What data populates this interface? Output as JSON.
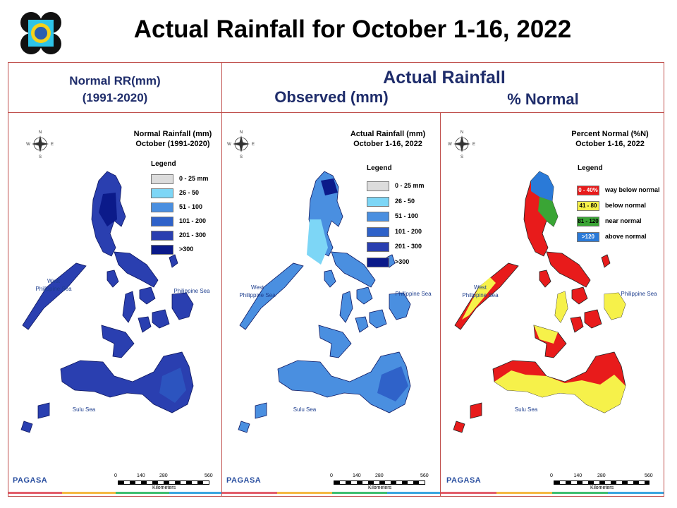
{
  "page_title": "Actual Rainfall for October 1-16, 2022",
  "headers": {
    "normal_line1": "Normal RR(mm)",
    "normal_line2": "(1991-2020)",
    "actual": "Actual Rainfall",
    "observed": "Observed (mm)",
    "percent": "% Normal"
  },
  "colors": {
    "border": "#c0504d",
    "header_text": "#1f2d6b"
  },
  "panels": [
    {
      "title_line1": "Normal Rainfall (mm)",
      "title_line2": "October (1991-2020)",
      "legend_title": "Legend",
      "legend": [
        {
          "label": "0 - 25 mm",
          "color": "#dcdcdc"
        },
        {
          "label": "26 - 50",
          "color": "#7dd6f6"
        },
        {
          "label": "51 - 100",
          "color": "#4a8fe0"
        },
        {
          "label": "101 - 200",
          "color": "#2f62c9"
        },
        {
          "label": "201 - 300",
          "color": "#2a3fb0"
        },
        {
          "label": ">300",
          "color": "#0b1a8a"
        }
      ],
      "sea_west": "West\nPhilippine Sea",
      "sea_east": "Philippine Sea",
      "sea_sulu": "Sulu Sea",
      "scale_ticks": [
        "0",
        "140",
        "280",
        "560"
      ],
      "scale_unit": "Kilometers",
      "logo_text": "PAGASA"
    },
    {
      "title_line1": "Actual Rainfall (mm)",
      "title_line2": "October 1-16, 2022",
      "legend_title": "Legend",
      "legend": [
        {
          "label": "0 - 25 mm",
          "color": "#dcdcdc"
        },
        {
          "label": "26 - 50",
          "color": "#7dd6f6"
        },
        {
          "label": "51 - 100",
          "color": "#4a8fe0"
        },
        {
          "label": "101 - 200",
          "color": "#2f62c9"
        },
        {
          "label": "201 - 300",
          "color": "#2a3fb0"
        },
        {
          "label": ">300",
          "color": "#0b1a8a"
        }
      ],
      "sea_west": "West\nPhilippine Sea",
      "sea_east": "Philippine Sea",
      "sea_sulu": "Sulu Sea",
      "scale_ticks": [
        "0",
        "140",
        "280",
        "560"
      ],
      "scale_unit": "Kilometers",
      "logo_text": "PAGASA"
    },
    {
      "title_line1": "Percent Normal (%N)",
      "title_line2": "October 1-16, 2022",
      "legend_title": "Legend",
      "legend": [
        {
          "box": "0 - 40%",
          "label": "way below normal",
          "color": "#e81b1b",
          "box_text_color": "#ffffff"
        },
        {
          "box": "41 - 80",
          "label": "below normal",
          "color": "#f6f14a",
          "box_text_color": "#000000"
        },
        {
          "box": "81 - 120",
          "label": "near normal",
          "color": "#3aa535",
          "box_text_color": "#000000"
        },
        {
          "box": ">120",
          "label": "above normal",
          "color": "#2a7ad8",
          "box_text_color": "#ffffff"
        }
      ],
      "sea_west": "West\nPhilippine Sea",
      "sea_east": "Philippine Sea",
      "sea_sulu": "Sulu Sea",
      "scale_ticks": [
        "0",
        "140",
        "280",
        "560"
      ],
      "scale_unit": "Kilometers",
      "logo_text": "PAGASA"
    }
  ]
}
